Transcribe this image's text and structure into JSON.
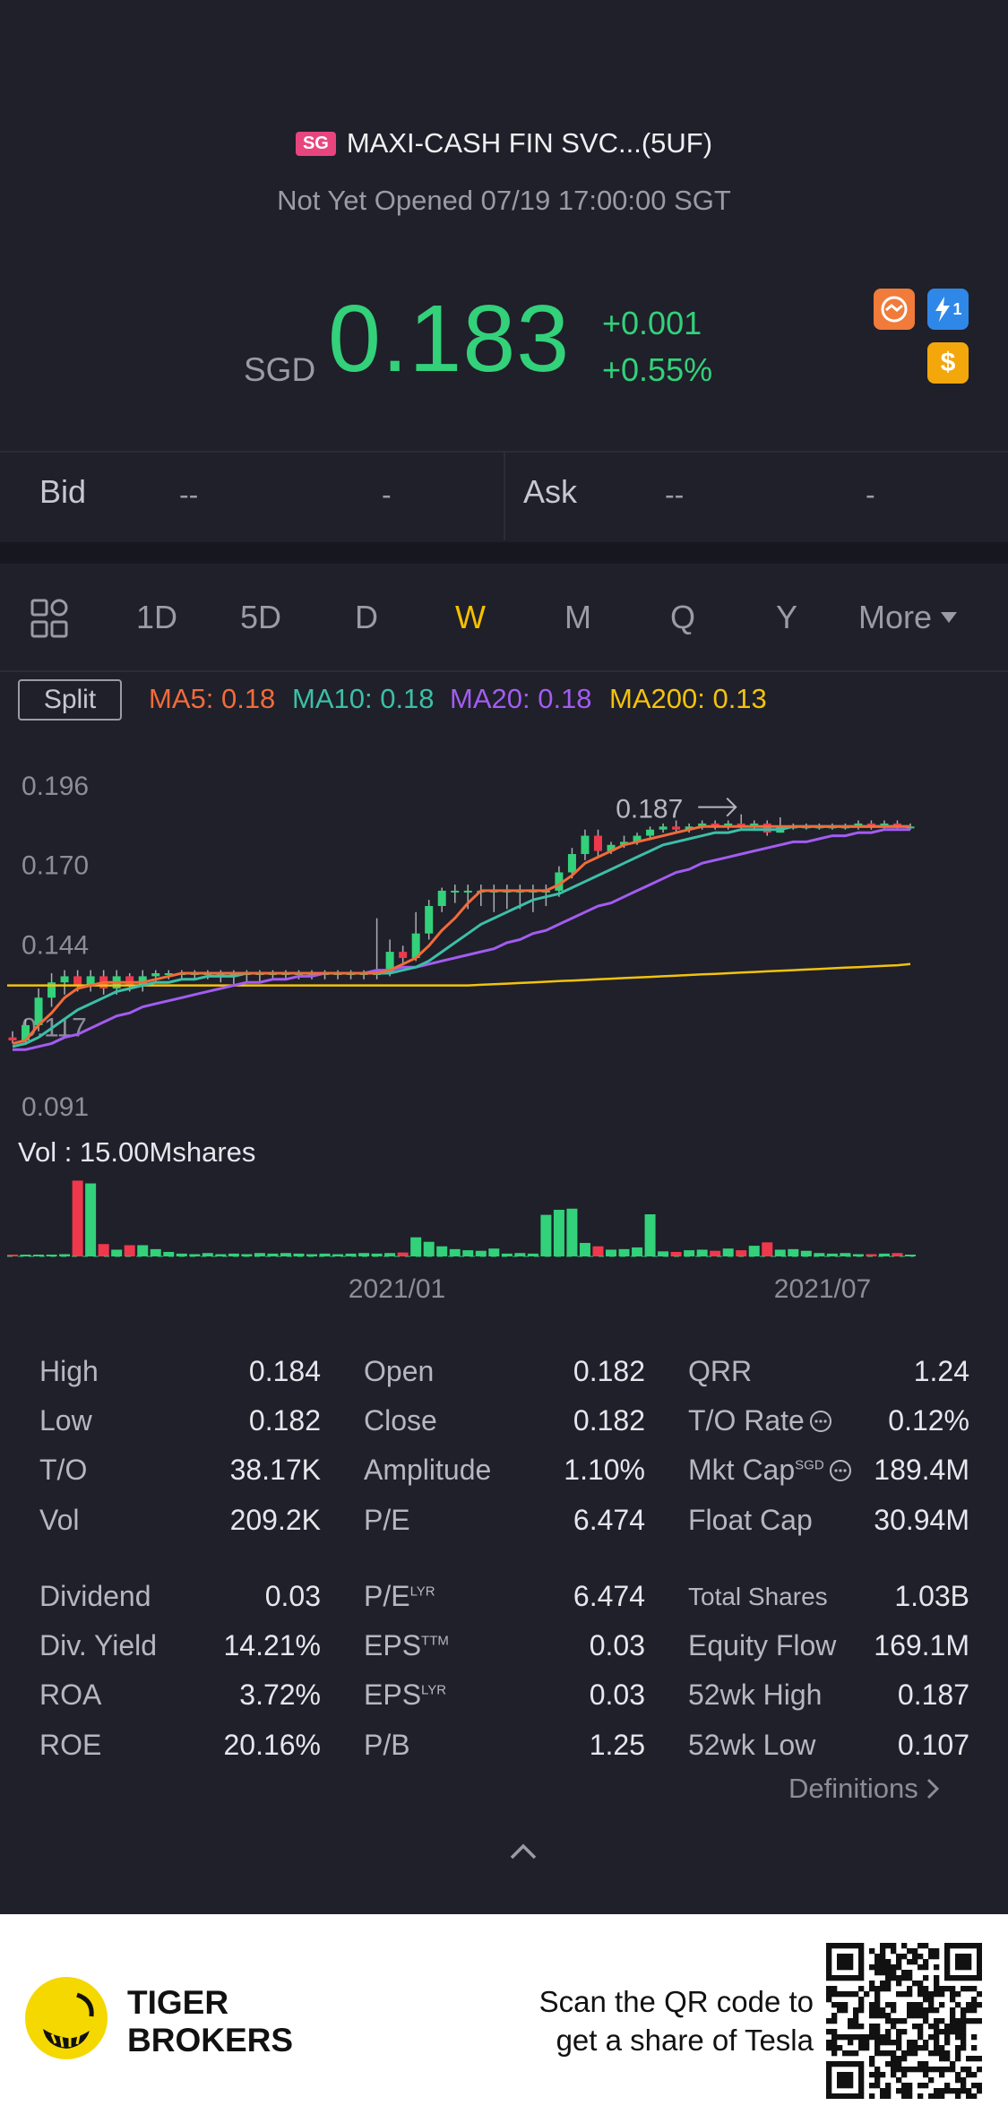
{
  "header": {
    "market_badge": "SG",
    "title": "MAXI-CASH FIN SVC...(5UF)",
    "status": "Not Yet Opened 07/19 17:00:00 SGT"
  },
  "quote": {
    "currency": "SGD",
    "price": "0.183",
    "change": "+0.001",
    "change_pct": "+0.55%",
    "up_color": "#32d17a",
    "down_color": "#f0384c",
    "icons": [
      "handshake-icon",
      "lightning-1-icon",
      "dollar-icon"
    ],
    "icon_lightning_digit": "1",
    "icon_dollar": "$"
  },
  "bid_ask": {
    "bid_label": "Bid",
    "bid_price": "--",
    "bid_size": "-",
    "ask_label": "Ask",
    "ask_price": "--",
    "ask_size": "-"
  },
  "periods": [
    "1D",
    "5D",
    "D",
    "W",
    "M",
    "Q",
    "Y"
  ],
  "active_period": "W",
  "more_label": "More",
  "indicators": {
    "split_label": "Split",
    "ma5": "MA5: 0.18",
    "ma5_color": "#f26b3a",
    "ma10": "MA10: 0.18",
    "ma10_color": "#3cbfa8",
    "ma20": "MA20: 0.18",
    "ma20_color": "#a35cf2",
    "ma200": "MA200: 0.13",
    "ma200_color": "#f4c20d"
  },
  "chart_data": {
    "type": "candlestick",
    "y_ticks": [
      "0.196",
      "0.170",
      "0.144",
      "0.117",
      "0.091"
    ],
    "ylim": [
      0.091,
      0.196
    ],
    "x_tick_labels": [
      "2021/01",
      "2021/07"
    ],
    "max_label": "0.187",
    "volume_label": "Vol  : 15.00Mshares",
    "volume_max": 15.0,
    "candles": [
      {
        "o": 0.114,
        "c": 0.113,
        "h": 0.116,
        "l": 0.112
      },
      {
        "o": 0.113,
        "c": 0.118,
        "h": 0.12,
        "l": 0.112
      },
      {
        "o": 0.118,
        "c": 0.127,
        "h": 0.13,
        "l": 0.116
      },
      {
        "o": 0.127,
        "c": 0.132,
        "h": 0.135,
        "l": 0.124
      },
      {
        "o": 0.132,
        "c": 0.134,
        "h": 0.136,
        "l": 0.128
      },
      {
        "o": 0.134,
        "c": 0.131,
        "h": 0.136,
        "l": 0.129
      },
      {
        "o": 0.131,
        "c": 0.134,
        "h": 0.136,
        "l": 0.129
      },
      {
        "o": 0.134,
        "c": 0.13,
        "h": 0.136,
        "l": 0.128
      },
      {
        "o": 0.13,
        "c": 0.134,
        "h": 0.136,
        "l": 0.128
      },
      {
        "o": 0.134,
        "c": 0.131,
        "h": 0.135,
        "l": 0.129
      },
      {
        "o": 0.131,
        "c": 0.134,
        "h": 0.136,
        "l": 0.129
      },
      {
        "o": 0.134,
        "c": 0.135,
        "h": 0.136,
        "l": 0.132
      },
      {
        "o": 0.135,
        "c": 0.135,
        "h": 0.136,
        "l": 0.133
      },
      {
        "o": 0.135,
        "c": 0.135,
        "h": 0.136,
        "l": 0.133
      },
      {
        "o": 0.135,
        "c": 0.135,
        "h": 0.136,
        "l": 0.133
      },
      {
        "o": 0.135,
        "c": 0.135,
        "h": 0.136,
        "l": 0.133
      },
      {
        "o": 0.135,
        "c": 0.135,
        "h": 0.136,
        "l": 0.132
      },
      {
        "o": 0.135,
        "c": 0.135,
        "h": 0.136,
        "l": 0.131
      },
      {
        "o": 0.135,
        "c": 0.135,
        "h": 0.136,
        "l": 0.132
      },
      {
        "o": 0.135,
        "c": 0.135,
        "h": 0.136,
        "l": 0.132
      },
      {
        "o": 0.135,
        "c": 0.135,
        "h": 0.136,
        "l": 0.133
      },
      {
        "o": 0.135,
        "c": 0.135,
        "h": 0.136,
        "l": 0.133
      },
      {
        "o": 0.135,
        "c": 0.135,
        "h": 0.136,
        "l": 0.133
      },
      {
        "o": 0.135,
        "c": 0.135,
        "h": 0.136,
        "l": 0.133
      },
      {
        "o": 0.135,
        "c": 0.135,
        "h": 0.136,
        "l": 0.133
      },
      {
        "o": 0.135,
        "c": 0.135,
        "h": 0.136,
        "l": 0.133
      },
      {
        "o": 0.135,
        "c": 0.135,
        "h": 0.136,
        "l": 0.133
      },
      {
        "o": 0.135,
        "c": 0.135,
        "h": 0.136,
        "l": 0.133
      },
      {
        "o": 0.135,
        "c": 0.135,
        "h": 0.153,
        "l": 0.133
      },
      {
        "o": 0.135,
        "c": 0.142,
        "h": 0.146,
        "l": 0.134
      },
      {
        "o": 0.142,
        "c": 0.14,
        "h": 0.144,
        "l": 0.138
      },
      {
        "o": 0.14,
        "c": 0.148,
        "h": 0.155,
        "l": 0.139
      },
      {
        "o": 0.148,
        "c": 0.157,
        "h": 0.159,
        "l": 0.146
      },
      {
        "o": 0.157,
        "c": 0.162,
        "h": 0.163,
        "l": 0.155
      },
      {
        "o": 0.162,
        "c": 0.162,
        "h": 0.164,
        "l": 0.158
      },
      {
        "o": 0.162,
        "c": 0.162,
        "h": 0.164,
        "l": 0.156
      },
      {
        "o": 0.162,
        "c": 0.162,
        "h": 0.164,
        "l": 0.157
      },
      {
        "o": 0.162,
        "c": 0.162,
        "h": 0.164,
        "l": 0.155
      },
      {
        "o": 0.162,
        "c": 0.162,
        "h": 0.164,
        "l": 0.156
      },
      {
        "o": 0.162,
        "c": 0.162,
        "h": 0.164,
        "l": 0.156
      },
      {
        "o": 0.162,
        "c": 0.162,
        "h": 0.164,
        "l": 0.155
      },
      {
        "o": 0.162,
        "c": 0.162,
        "h": 0.164,
        "l": 0.157
      },
      {
        "o": 0.162,
        "c": 0.168,
        "h": 0.17,
        "l": 0.16
      },
      {
        "o": 0.168,
        "c": 0.174,
        "h": 0.176,
        "l": 0.166
      },
      {
        "o": 0.174,
        "c": 0.18,
        "h": 0.182,
        "l": 0.172
      },
      {
        "o": 0.18,
        "c": 0.175,
        "h": 0.182,
        "l": 0.173
      },
      {
        "o": 0.175,
        "c": 0.177,
        "h": 0.178,
        "l": 0.174
      },
      {
        "o": 0.177,
        "c": 0.178,
        "h": 0.18,
        "l": 0.176
      },
      {
        "o": 0.178,
        "c": 0.18,
        "h": 0.181,
        "l": 0.177
      },
      {
        "o": 0.18,
        "c": 0.182,
        "h": 0.183,
        "l": 0.179
      },
      {
        "o": 0.182,
        "c": 0.183,
        "h": 0.184,
        "l": 0.181
      },
      {
        "o": 0.183,
        "c": 0.182,
        "h": 0.185,
        "l": 0.181
      },
      {
        "o": 0.182,
        "c": 0.183,
        "h": 0.184,
        "l": 0.181
      },
      {
        "o": 0.183,
        "c": 0.184,
        "h": 0.185,
        "l": 0.182
      },
      {
        "o": 0.184,
        "c": 0.183,
        "h": 0.185,
        "l": 0.182
      },
      {
        "o": 0.183,
        "c": 0.184,
        "h": 0.185,
        "l": 0.182
      },
      {
        "o": 0.184,
        "c": 0.183,
        "h": 0.187,
        "l": 0.182
      },
      {
        "o": 0.183,
        "c": 0.184,
        "h": 0.185,
        "l": 0.182
      },
      {
        "o": 0.184,
        "c": 0.181,
        "h": 0.185,
        "l": 0.18
      },
      {
        "o": 0.181,
        "c": 0.183,
        "h": 0.186,
        "l": 0.181
      },
      {
        "o": 0.183,
        "c": 0.183,
        "h": 0.184,
        "l": 0.182
      },
      {
        "o": 0.183,
        "c": 0.183,
        "h": 0.184,
        "l": 0.182
      },
      {
        "o": 0.183,
        "c": 0.183,
        "h": 0.184,
        "l": 0.182
      },
      {
        "o": 0.183,
        "c": 0.183,
        "h": 0.184,
        "l": 0.182
      },
      {
        "o": 0.183,
        "c": 0.183,
        "h": 0.184,
        "l": 0.182
      },
      {
        "o": 0.183,
        "c": 0.184,
        "h": 0.185,
        "l": 0.182
      },
      {
        "o": 0.184,
        "c": 0.183,
        "h": 0.185,
        "l": 0.182
      },
      {
        "o": 0.183,
        "c": 0.184,
        "h": 0.185,
        "l": 0.182
      },
      {
        "o": 0.184,
        "c": 0.183,
        "h": 0.185,
        "l": 0.182
      },
      {
        "o": 0.183,
        "c": 0.183,
        "h": 0.184,
        "l": 0.182
      }
    ],
    "volume": [
      0.3,
      0.3,
      0.3,
      0.3,
      0.4,
      13.5,
      13.0,
      2.2,
      1.2,
      2.0,
      2.0,
      1.3,
      0.8,
      0.5,
      0.4,
      0.6,
      0.4,
      0.5,
      0.4,
      0.6,
      0.5,
      0.6,
      0.5,
      0.4,
      0.5,
      0.4,
      0.5,
      0.6,
      0.5,
      0.6,
      0.7,
      3.4,
      2.6,
      1.8,
      1.3,
      1.1,
      1.0,
      1.4,
      0.5,
      0.6,
      0.5,
      7.4,
      8.3,
      8.5,
      2.4,
      1.8,
      1.2,
      1.3,
      1.6,
      7.5,
      0.9,
      0.8,
      1.1,
      1.2,
      1.0,
      1.4,
      1.1,
      1.9,
      2.5,
      1.2,
      1.3,
      1.0,
      0.6,
      0.5,
      0.6,
      0.4,
      0.4,
      0.5,
      0.6,
      0.3
    ],
    "ma5": [
      0.112,
      0.113,
      0.118,
      0.122,
      0.127,
      0.13,
      0.131,
      0.132,
      0.132,
      0.132,
      0.132,
      0.133,
      0.134,
      0.135,
      0.135,
      0.135,
      0.135,
      0.135,
      0.135,
      0.135,
      0.135,
      0.135,
      0.135,
      0.135,
      0.135,
      0.135,
      0.135,
      0.135,
      0.135,
      0.136,
      0.138,
      0.14,
      0.144,
      0.149,
      0.153,
      0.158,
      0.162,
      0.162,
      0.162,
      0.162,
      0.162,
      0.162,
      0.164,
      0.167,
      0.171,
      0.173,
      0.175,
      0.177,
      0.178,
      0.179,
      0.18,
      0.181,
      0.182,
      0.183,
      0.183,
      0.183,
      0.183,
      0.183,
      0.183,
      0.183,
      0.183,
      0.183,
      0.183,
      0.183,
      0.183,
      0.183,
      0.183,
      0.183,
      0.183,
      0.183
    ],
    "ma10": [
      0.111,
      0.112,
      0.114,
      0.117,
      0.12,
      0.123,
      0.125,
      0.127,
      0.129,
      0.13,
      0.131,
      0.132,
      0.132,
      0.133,
      0.133,
      0.134,
      0.134,
      0.134,
      0.135,
      0.135,
      0.135,
      0.135,
      0.135,
      0.135,
      0.135,
      0.135,
      0.135,
      0.135,
      0.135,
      0.135,
      0.136,
      0.137,
      0.139,
      0.142,
      0.145,
      0.148,
      0.151,
      0.153,
      0.155,
      0.157,
      0.159,
      0.16,
      0.161,
      0.163,
      0.165,
      0.167,
      0.169,
      0.171,
      0.173,
      0.175,
      0.177,
      0.178,
      0.179,
      0.18,
      0.181,
      0.181,
      0.182,
      0.182,
      0.182,
      0.182,
      0.183,
      0.183,
      0.183,
      0.183,
      0.183,
      0.183,
      0.183,
      0.183,
      0.183,
      0.183
    ],
    "ma20": [
      0.11,
      0.11,
      0.111,
      0.112,
      0.114,
      0.115,
      0.117,
      0.119,
      0.121,
      0.122,
      0.124,
      0.125,
      0.126,
      0.127,
      0.128,
      0.129,
      0.13,
      0.131,
      0.132,
      0.132,
      0.133,
      0.133,
      0.134,
      0.134,
      0.135,
      0.135,
      0.135,
      0.135,
      0.136,
      0.136,
      0.137,
      0.137,
      0.138,
      0.139,
      0.14,
      0.141,
      0.142,
      0.143,
      0.145,
      0.146,
      0.148,
      0.149,
      0.151,
      0.153,
      0.155,
      0.157,
      0.158,
      0.16,
      0.162,
      0.164,
      0.166,
      0.168,
      0.169,
      0.171,
      0.172,
      0.173,
      0.174,
      0.175,
      0.176,
      0.177,
      0.178,
      0.178,
      0.179,
      0.18,
      0.18,
      0.181,
      0.181,
      0.182,
      0.182,
      0.182
    ],
    "ma200": [
      0.131,
      0.131,
      0.131,
      0.131,
      0.131,
      0.131,
      0.131,
      0.131,
      0.131,
      0.131,
      0.131,
      0.131,
      0.131,
      0.131,
      0.131,
      0.131,
      0.131,
      0.131,
      0.131,
      0.131,
      0.131,
      0.131,
      0.131,
      0.131,
      0.131,
      0.131,
      0.131,
      0.131,
      0.131,
      0.131,
      0.131,
      0.131,
      0.131,
      0.131,
      0.131,
      0.131,
      0.1312,
      0.1314,
      0.1316,
      0.1318,
      0.132,
      0.1322,
      0.1324,
      0.1326,
      0.1328,
      0.133,
      0.1332,
      0.1334,
      0.1336,
      0.1338,
      0.134,
      0.1342,
      0.1344,
      0.1346,
      0.1348,
      0.135,
      0.1352,
      0.1354,
      0.1356,
      0.1358,
      0.136,
      0.1362,
      0.1364,
      0.1366,
      0.1368,
      0.137,
      0.1372,
      0.1374,
      0.1376,
      0.138
    ]
  },
  "stats": {
    "col1": [
      {
        "label": "High",
        "value": "0.184"
      },
      {
        "label": "Low",
        "value": "0.182"
      },
      {
        "label": "T/O",
        "value": "38.17K"
      },
      {
        "label": "Vol",
        "value": "209.2K"
      },
      {
        "label": "Dividend",
        "value": "0.03"
      },
      {
        "label": "Div. Yield",
        "value": "14.21%"
      },
      {
        "label": "ROA",
        "value": "3.72%"
      },
      {
        "label": "ROE",
        "value": "20.16%"
      }
    ],
    "col2": [
      {
        "label": "Open",
        "value": "0.182"
      },
      {
        "label": "Close",
        "value": "0.182"
      },
      {
        "label": "Amplitude",
        "value": "1.10%"
      },
      {
        "label": "P/E",
        "value": "6.474"
      },
      {
        "label": "P/E",
        "sup": "LYR",
        "value": "6.474"
      },
      {
        "label": "EPS",
        "sup": "TTM",
        "value": "0.03"
      },
      {
        "label": "EPS",
        "sup": "LYR",
        "value": "0.03"
      },
      {
        "label": "P/B",
        "value": "1.25"
      }
    ],
    "col3": [
      {
        "label": "QRR",
        "value": "1.24"
      },
      {
        "label": "T/O Rate",
        "value": "0.12%"
      },
      {
        "label": "Mkt Cap",
        "sup": "SGD",
        "value": "189.4M"
      },
      {
        "label": "Float Cap",
        "value": "30.94M"
      },
      {
        "label": "Total Shares",
        "value": "1.03B"
      },
      {
        "label": "Equity Flow",
        "value": "169.1M"
      },
      {
        "label": "52wk High",
        "value": "0.187"
      },
      {
        "label": "52wk Low",
        "value": "0.107"
      }
    ],
    "definitions_label": "Definitions"
  },
  "footer": {
    "brand_line1": "TIGER",
    "brand_line2": "BROKERS",
    "promo_line1": "Scan the QR code to",
    "promo_line2": "get a share of Tesla"
  }
}
